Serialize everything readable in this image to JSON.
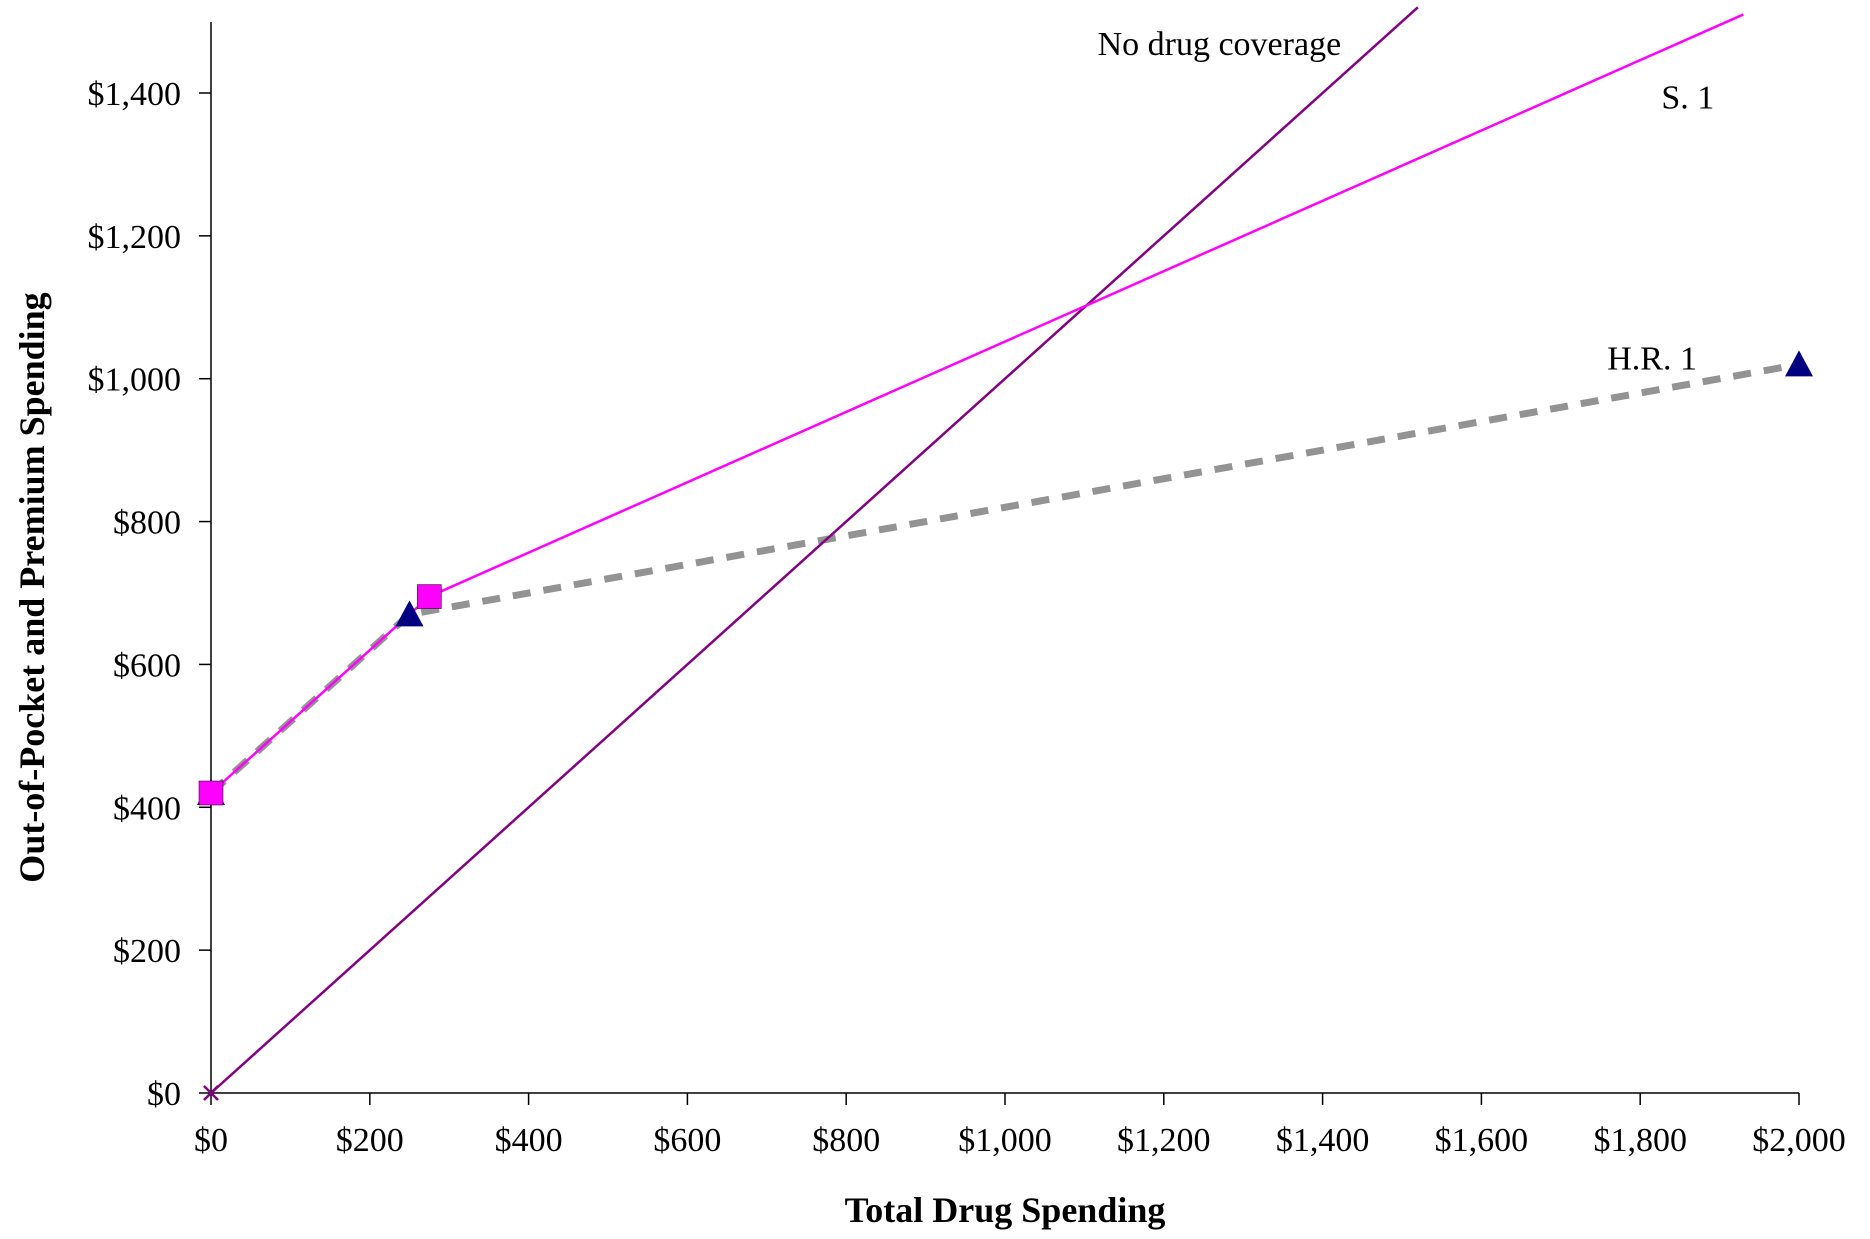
{
  "chart_data": {
    "type": "line",
    "xlabel": "Total Drug Spending",
    "ylabel": "Out-of-Pocket and Premium Spending",
    "xlim": [
      0,
      2000
    ],
    "ylim": [
      0,
      1500
    ],
    "x_ticks": [
      0,
      200,
      400,
      600,
      800,
      1000,
      1200,
      1400,
      1600,
      1800,
      2000
    ],
    "x_tick_labels": [
      "$0",
      "$200",
      "$400",
      "$600",
      "$800",
      "$1,000",
      "$1,200",
      "$1,400",
      "$1,600",
      "$1,800",
      "$2,000"
    ],
    "y_ticks": [
      0,
      200,
      400,
      600,
      800,
      1000,
      1200,
      1400
    ],
    "y_tick_labels": [
      "$0",
      "$200",
      "$400",
      "$600",
      "$800",
      "$1,000",
      "$1,200",
      "$1,400"
    ],
    "grid": false,
    "legend": "none",
    "series": [
      {
        "name": "No drug coverage",
        "color": "#800080",
        "style": "solid",
        "marker": "x",
        "points": [
          [
            0,
            0
          ],
          [
            1520,
            1520
          ]
        ]
      },
      {
        "name": "S. 1",
        "color": "#FF00FF",
        "style": "solid",
        "marker": "square",
        "points": [
          [
            0,
            420
          ],
          [
            275,
            695
          ]
        ],
        "extension": [
          275,
          695,
          1930,
          1510
        ]
      },
      {
        "name": "H.R. 1",
        "color": "#939393",
        "style": "dashed",
        "marker": "triangle",
        "marker_color": "#000080",
        "points": [
          [
            0,
            420
          ],
          [
            250,
            670
          ],
          [
            2000,
            1020
          ]
        ]
      }
    ],
    "annotations": [
      {
        "text": "No drug coverage",
        "x": 1270,
        "y": 1470
      },
      {
        "text": "S. 1",
        "x": 1860,
        "y": 1395
      },
      {
        "text": "H.R. 1",
        "x": 1815,
        "y": 1030
      }
    ]
  }
}
